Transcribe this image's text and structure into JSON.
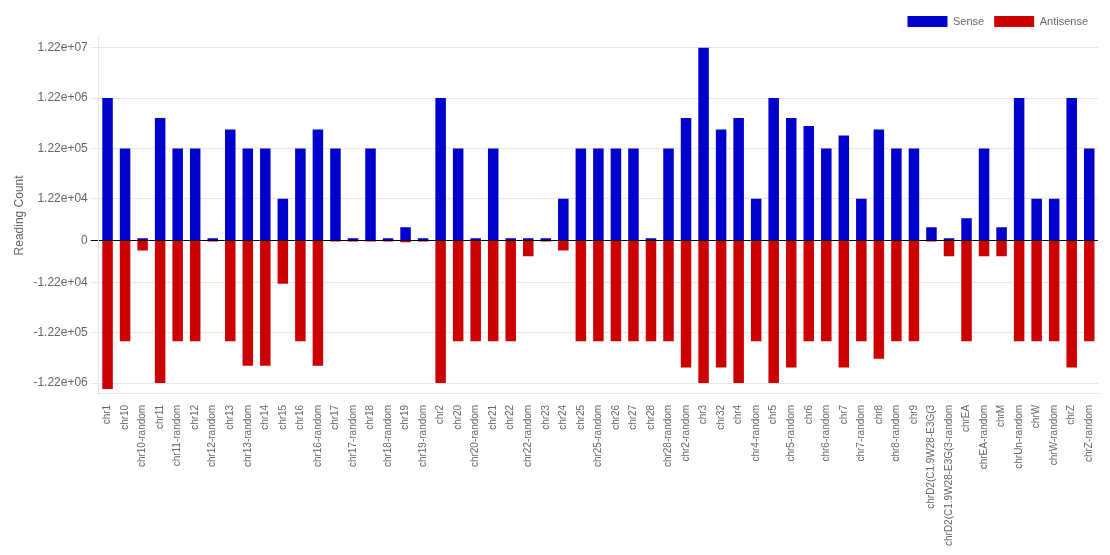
{
  "chart_data": {
    "type": "bar",
    "ylabel": "Reading Count",
    "categories": [
      "chr1",
      "chr10",
      "chr10-random",
      "chr11",
      "chr11-random",
      "chr12",
      "chr12-random",
      "chr13",
      "chr13-random",
      "chr14",
      "chr15",
      "chr16",
      "chr16-random",
      "chr17",
      "chr17-random",
      "chr18",
      "chr18-random",
      "chr19",
      "chr19-random",
      "chr2",
      "chr20",
      "chr20-random",
      "chr21",
      "chr22",
      "chr22-random",
      "chr23",
      "chr24",
      "chr25",
      "chr25-random",
      "chr26",
      "chr27",
      "chr28",
      "chr28-random",
      "chr2-random",
      "chr3",
      "chr32",
      "chr4",
      "chr4-random",
      "chr5",
      "chr5-random",
      "chr6",
      "chr6-random",
      "chr7",
      "chr7-random",
      "chr8",
      "chr8-random",
      "chr9",
      "chrD2(C1.9W28-E3G(3",
      "chrD2(C1.9W28-E3G(3-random",
      "chrEA",
      "chrEA-random",
      "chrM",
      "chrUn-random",
      "chrW",
      "chrW-random",
      "chrZ",
      "chrZ-random"
    ],
    "series": [
      {
        "name": "Sense",
        "color": "#0000cc",
        "values": [
          1220000,
          122000,
          500,
          490000,
          122000,
          122000,
          500,
          290000,
          122000,
          122000,
          12200,
          122000,
          290000,
          122000,
          500,
          122000,
          500,
          3000,
          500,
          1220000,
          122000,
          500,
          122000,
          500,
          500,
          500,
          12200,
          122000,
          122000,
          122000,
          122000,
          500,
          122000,
          490000,
          12200000,
          290000,
          490000,
          12200,
          1220000,
          490000,
          340000,
          122000,
          220000,
          12200,
          290000,
          122000,
          122000,
          3000,
          500,
          5000,
          122000,
          3000,
          1220000,
          12200,
          12200,
          1220000,
          122000
        ]
      },
      {
        "name": "Antisense",
        "color": "#cc0000",
        "values": [
          -1600000,
          -180000,
          -2200,
          -1220000,
          -180000,
          -180000,
          -200,
          -180000,
          -550000,
          -550000,
          -13000,
          -180000,
          -550000,
          -200,
          -200,
          -200,
          -200,
          -400,
          -200,
          -1220000,
          -180000,
          -180000,
          -180000,
          -180000,
          -3500,
          -200,
          -2200,
          -180000,
          -180000,
          -180000,
          -180000,
          -180000,
          -180000,
          -600000,
          -1220000,
          -600000,
          -1220000,
          -180000,
          -1220000,
          -600000,
          -180000,
          -180000,
          -600000,
          -180000,
          -400000,
          -180000,
          -180000,
          -200,
          -3500,
          -180000,
          -3500,
          -3500,
          -180000,
          -180000,
          -180000,
          -600000,
          -180000
        ]
      }
    ],
    "log": "y",
    "ylim": [
      -2000000,
      20000000
    ],
    "yticks": [
      {
        "value": -1220000,
        "label": "-1.22e+06"
      },
      {
        "value": -122000,
        "label": "-1.22e+05"
      },
      {
        "value": -12200,
        "label": "-1.22e+04"
      },
      0,
      {
        "value": 12200,
        "label": "1.22e+04"
      },
      {
        "value": 122000,
        "label": "1.22e+05"
      },
      {
        "value": 1220000,
        "label": "1.22e+06"
      },
      {
        "value": 12200000,
        "label": "1.22e+07"
      }
    ],
    "grid": true,
    "legend": "upper right"
  }
}
